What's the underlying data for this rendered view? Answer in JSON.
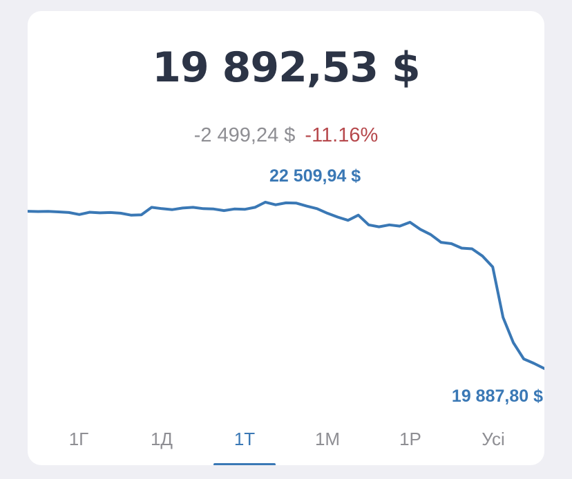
{
  "portfolio": {
    "balance": "19 892,53 $",
    "change_amount": "-2 499,24 $",
    "change_percent": "-11.16%"
  },
  "colors": {
    "line": "#3a78b5",
    "negative": "#b6484c",
    "muted": "#8e8e93",
    "balance_text": "#2c3446"
  },
  "chart_data": {
    "type": "line",
    "max_label": "22 509,94 $",
    "min_label": "19 887,80 $",
    "max_value": 22509.94,
    "min_value": 19887.8,
    "ylim": [
      19887.8,
      22509.94
    ],
    "series": [
      {
        "values": [
          22360,
          22355,
          22358,
          22350,
          22340,
          22310,
          22345,
          22335,
          22340,
          22330,
          22300,
          22305,
          22420,
          22400,
          22385,
          22410,
          22420,
          22400,
          22395,
          22370,
          22395,
          22390,
          22420,
          22500,
          22460,
          22490,
          22485,
          22440,
          22400,
          22330,
          22270,
          22220,
          22300,
          22150,
          22120,
          22150,
          22130,
          22190,
          22080,
          22000,
          21880,
          21860,
          21790,
          21780,
          21670,
          21500,
          20720,
          20330,
          20080,
          20010,
          19930
        ]
      }
    ]
  },
  "tabs": [
    {
      "label": "1Г"
    },
    {
      "label": "1Д"
    },
    {
      "label": "1Т"
    },
    {
      "label": "1М"
    },
    {
      "label": "1Р"
    },
    {
      "label": "Усі"
    }
  ],
  "active_tab": "1Т"
}
